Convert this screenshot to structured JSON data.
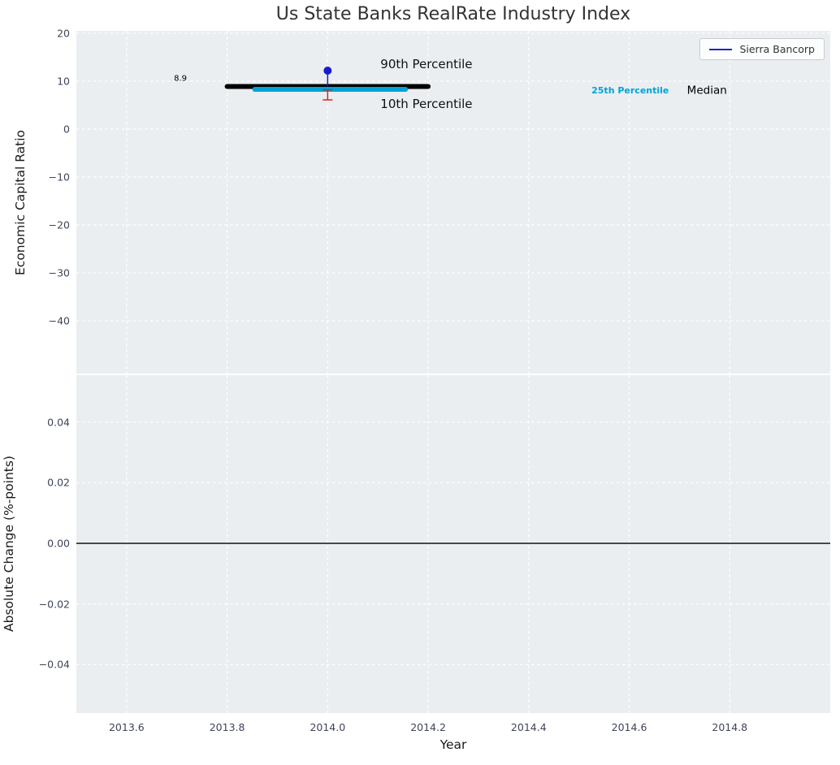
{
  "figure": {
    "title": "Us State Banks RealRate Industry Index",
    "legend": {
      "label": "Sierra Bancorp",
      "line_color": "#2222cc"
    },
    "colors": {
      "axes_bg": "#eaeef0",
      "grid": "#ffffff",
      "tick_label": "#3f4458",
      "title": "#333333",
      "axis_label": "#1a1a1a"
    }
  },
  "chart_data": [
    {
      "type": "line",
      "axes": "axes-top",
      "title": "Us State Banks RealRate Industry Index",
      "ylabel": "Economic Capital Ratio",
      "xlim": [
        2013.5,
        2015.0
      ],
      "ylim": [
        -51,
        20.5
      ],
      "xticks": [
        2013.6,
        2013.8,
        2014.0,
        2014.2,
        2014.4,
        2014.6,
        2014.8
      ],
      "xtick_labels": [],
      "yticks": [
        20,
        10,
        0,
        -10,
        -20,
        -30,
        -40
      ],
      "ytick_labels": [
        "20",
        "10",
        "0",
        "−10",
        "−20",
        "−30",
        "−40"
      ],
      "grid": true,
      "legend_position": "upper right",
      "elements": [
        {
          "type": "segment",
          "name": "median-line",
          "x1": 2013.8,
          "x2": 2014.2,
          "y": 8.9,
          "color": "#000000",
          "width": 6
        },
        {
          "type": "segment",
          "name": "p25-line",
          "x1": 2013.855,
          "x2": 2014.155,
          "y": 8.3,
          "color": "#00a3d7",
          "width": 6
        },
        {
          "type": "errorbar",
          "name": "p90-errorbar",
          "x": 2014.0,
          "y1": 8.9,
          "y2": 12.2,
          "color": "#1a1acd",
          "width": 1.5,
          "cap": 0
        },
        {
          "type": "point",
          "name": "p90-marker",
          "x": 2014.0,
          "y": 12.2,
          "color": "#1a1acd",
          "radius": 5
        },
        {
          "type": "errorbar",
          "name": "p10-errorbar",
          "x": 2014.0,
          "y1": 8.2,
          "y2": 6.1,
          "color": "#d62728",
          "width": 1.5,
          "cap": 6
        }
      ],
      "annotations": [
        {
          "name": "median-value-label",
          "text": "8.9",
          "x": 2013.707,
          "y": 10.5,
          "color": "#000000",
          "size": 10,
          "weight": "normal",
          "anchor": "middle"
        },
        {
          "name": "p90-label",
          "text": "90th Percentile",
          "x": 2014.105,
          "y": 13.5,
          "color": "#111111",
          "size": 15,
          "weight": "normal",
          "anchor": "start"
        },
        {
          "name": "p10-label",
          "text": "10th Percentile",
          "x": 2014.105,
          "y": 5.2,
          "color": "#111111",
          "size": 15,
          "weight": "normal",
          "anchor": "start"
        },
        {
          "name": "p25-label",
          "text": "25th Percentile",
          "x": 2014.525,
          "y": 7.9,
          "color": "#00a3d7",
          "size": 11,
          "weight": "bold",
          "anchor": "start"
        },
        {
          "name": "median-label",
          "text": "Median",
          "x": 2014.715,
          "y": 7.9,
          "color": "#000000",
          "size": 13.5,
          "weight": "normal",
          "anchor": "start"
        }
      ]
    },
    {
      "type": "line",
      "axes": "axes-bottom",
      "ylabel": "Absolute Change (%-points)",
      "xlabel": "Year",
      "xlim": [
        2013.5,
        2015.0
      ],
      "ylim": [
        -0.056,
        0.0555
      ],
      "xticks": [
        2013.6,
        2013.8,
        2014.0,
        2014.2,
        2014.4,
        2014.6,
        2014.8
      ],
      "xtick_labels": [
        "2013.6",
        "2013.8",
        "2014.0",
        "2014.2",
        "2014.4",
        "2014.6",
        "2014.8"
      ],
      "yticks": [
        0.04,
        0.02,
        0.0,
        -0.02,
        -0.04
      ],
      "ytick_labels": [
        "0.04",
        "0.02",
        "0.00",
        "−0.02",
        "−0.04"
      ],
      "grid": true,
      "elements": [
        {
          "type": "hline",
          "name": "zero-line",
          "y": 0,
          "color": "#000000",
          "width": 1.3
        }
      ],
      "annotations": []
    }
  ]
}
